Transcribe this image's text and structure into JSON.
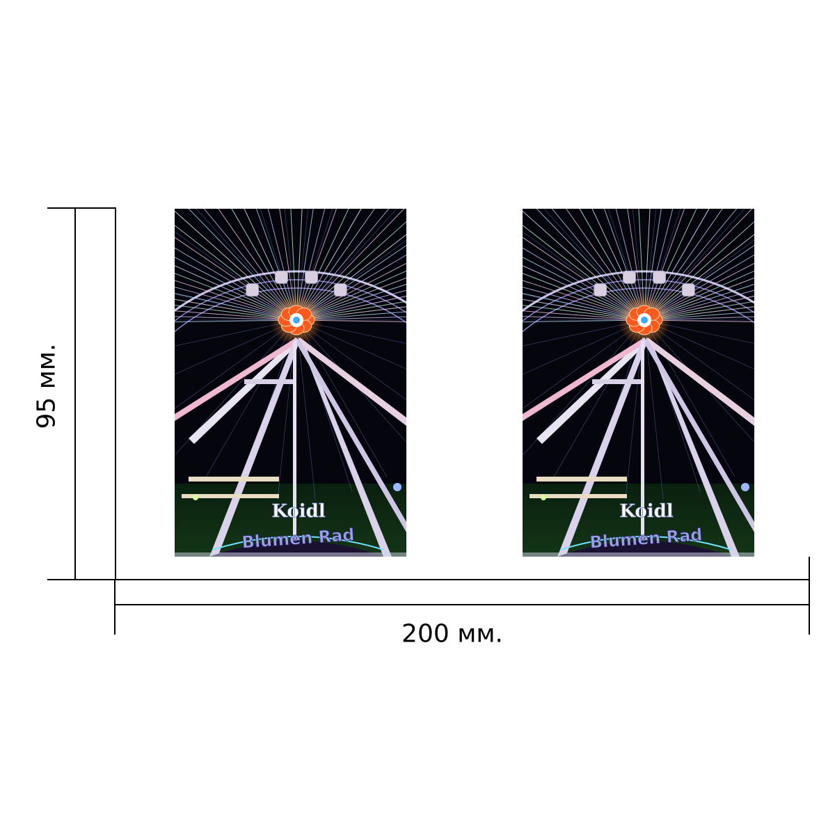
{
  "dimensions": {
    "height_label": "95 мм.",
    "width_label": "200 мм."
  },
  "photos": [
    {
      "sign_top": "Koidl",
      "sign_bottom": "Blumen Rad"
    },
    {
      "sign_top": "Koidl",
      "sign_bottom": "Blumen Rad"
    }
  ],
  "colors": {
    "sky": "#05060d",
    "lines": "#000000",
    "hub": "#ff5a1e"
  }
}
